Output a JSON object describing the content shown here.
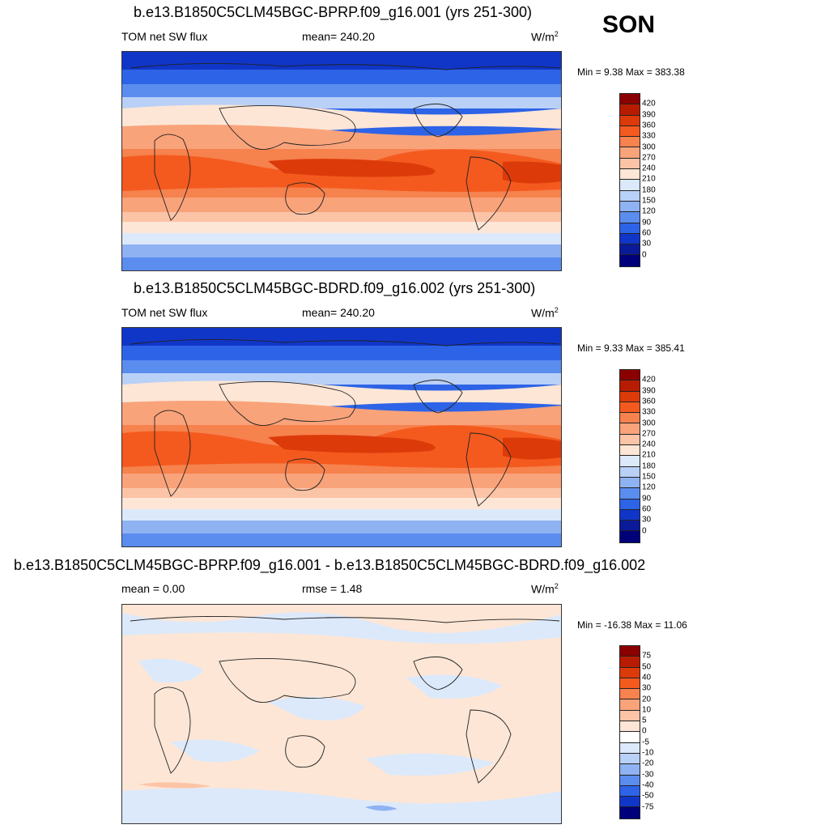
{
  "season": "SON",
  "panels": [
    {
      "title": "b.e13.B1850C5CLM45BGC-BPRP.f09_g16.001 (yrs 251-300)",
      "left_label": "TOM net SW flux",
      "center_label": "mean= 240.20",
      "units": "W/m",
      "units_sup": "2",
      "minmax": "Min =   9.38 Max = 383.38",
      "colorbar": {
        "labels": [
          "420",
          "390",
          "360",
          "330",
          "300",
          "270",
          "240",
          "210",
          "180",
          "150",
          "120",
          "90",
          "60",
          "30",
          "0"
        ],
        "colors": [
          "#8b0000",
          "#b71c00",
          "#dd3a0a",
          "#f45a1e",
          "#f6824e",
          "#f9a37a",
          "#fcc4a6",
          "#fde6d6",
          "#dce9fb",
          "#b9d0f7",
          "#8fb2f2",
          "#5b8def",
          "#2d63e6",
          "#1036c8",
          "#0a1a98",
          "#00007a"
        ]
      }
    },
    {
      "title": "b.e13.B1850C5CLM45BGC-BDRD.f09_g16.002 (yrs 251-300)",
      "left_label": "TOM net SW flux",
      "center_label": "mean= 240.20",
      "units": "W/m",
      "units_sup": "2",
      "minmax": "Min =   9.33 Max = 385.41",
      "colorbar": {
        "labels": [
          "420",
          "390",
          "360",
          "330",
          "300",
          "270",
          "240",
          "210",
          "180",
          "150",
          "120",
          "90",
          "60",
          "30",
          "0"
        ],
        "colors": [
          "#8b0000",
          "#b71c00",
          "#dd3a0a",
          "#f45a1e",
          "#f6824e",
          "#f9a37a",
          "#fcc4a6",
          "#fde6d6",
          "#dce9fb",
          "#b9d0f7",
          "#8fb2f2",
          "#5b8def",
          "#2d63e6",
          "#1036c8",
          "#0a1a98",
          "#00007a"
        ]
      }
    },
    {
      "title": "b.e13.B1850C5CLM45BGC-BPRP.f09_g16.001 - b.e13.B1850C5CLM45BGC-BDRD.f09_g16.002",
      "left_label": "mean =   0.00",
      "center_label": "rmse =   1.48",
      "units": "W/m",
      "units_sup": "2",
      "minmax": "Min = -16.38 Max =  11.06",
      "colorbar": {
        "labels": [
          "75",
          "50",
          "40",
          "30",
          "20",
          "10",
          "5",
          "0",
          "-5",
          "-10",
          "-20",
          "-30",
          "-40",
          "-50",
          "-75"
        ],
        "colors": [
          "#8b0000",
          "#b71c00",
          "#dd3a0a",
          "#f45a1e",
          "#f6824e",
          "#f9a37a",
          "#fcc4a6",
          "#fde6d6",
          "#ffffff",
          "#dce9fb",
          "#b9d0f7",
          "#8fb2f2",
          "#5b8def",
          "#2d63e6",
          "#1036c8",
          "#00007a"
        ]
      }
    }
  ]
}
